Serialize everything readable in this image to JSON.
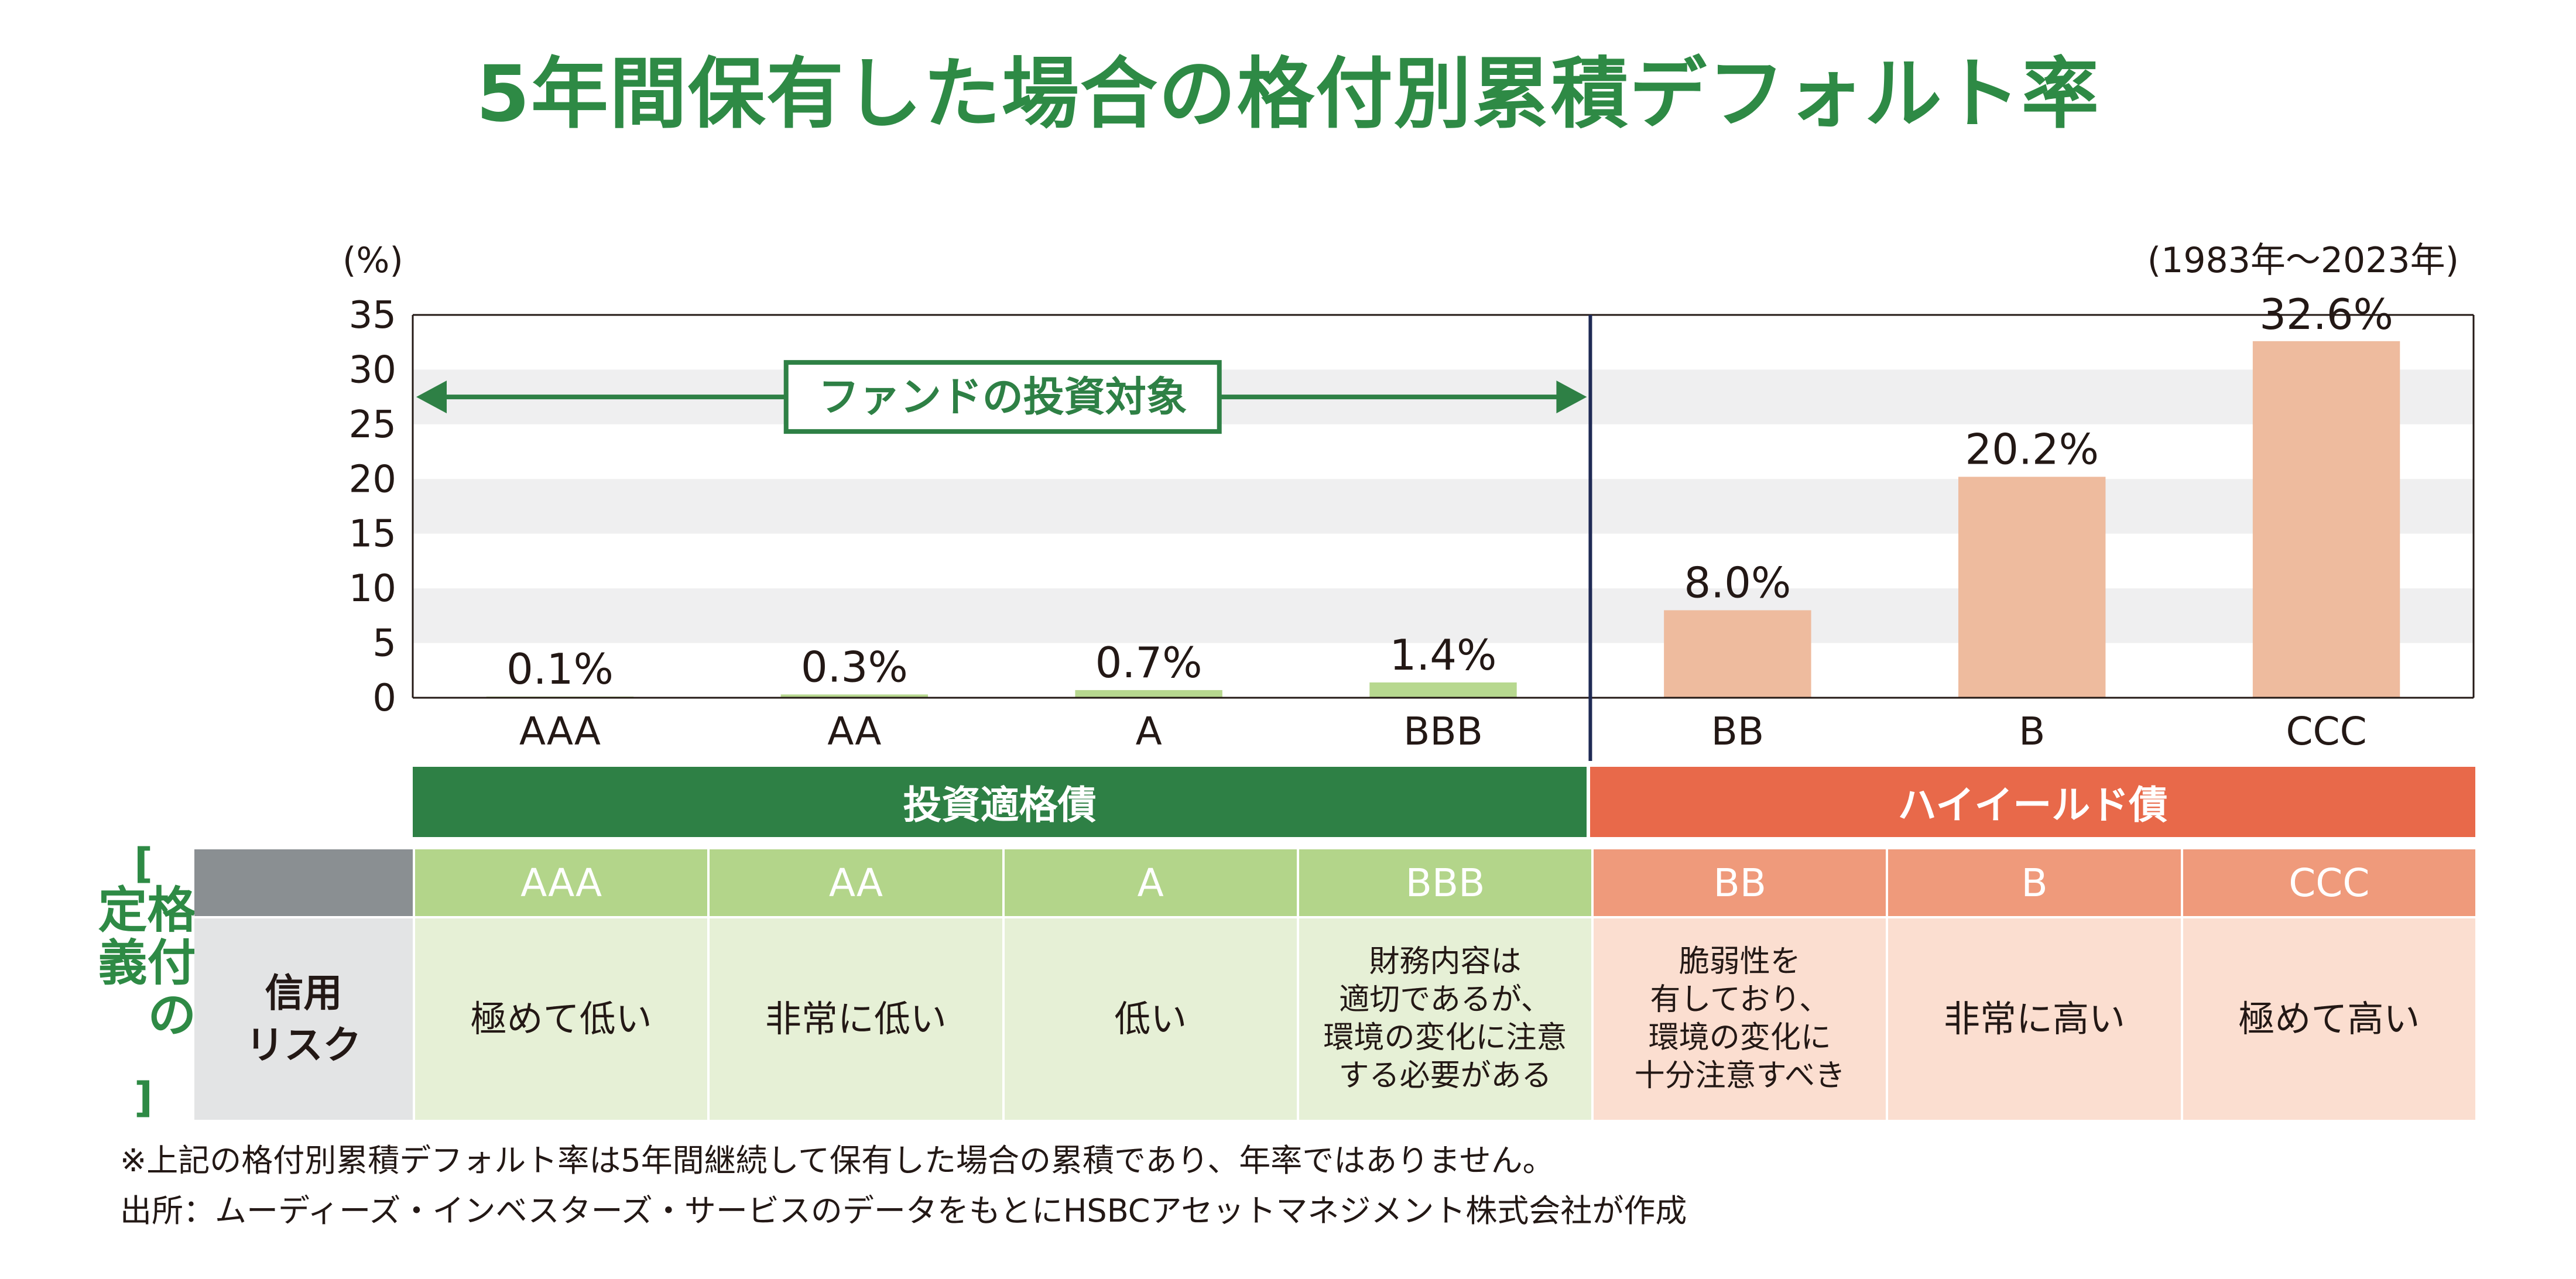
{
  "title": "5年間保有した場合の格付別累積デフォルト率",
  "chart_data": {
    "type": "bar",
    "title": "5年間保有した場合の格付別累積デフォルト率",
    "unit_label": "(%)",
    "period_label": "(1983年～2023年)",
    "categories": [
      "AAA",
      "AA",
      "A",
      "BBB",
      "BB",
      "B",
      "CCC"
    ],
    "values": [
      0.1,
      0.3,
      0.7,
      1.4,
      8.0,
      20.2,
      32.6
    ],
    "value_labels": [
      "0.1%",
      "0.3%",
      "0.7%",
      "1.4%",
      "8.0%",
      "20.2%",
      "32.6%"
    ],
    "colors": [
      "#b7d88f",
      "#b7d88f",
      "#b7d88f",
      "#b7d88f",
      "#eebb9e",
      "#eebb9e",
      "#eebb9e"
    ],
    "ylim": [
      0,
      35
    ],
    "yticks": [
      0,
      5,
      10,
      15,
      20,
      25,
      30,
      35
    ],
    "ytick_labels": [
      "0",
      "5",
      "10",
      "15",
      "20",
      "25",
      "30",
      "35"
    ],
    "xlabel": "",
    "ylabel": "",
    "divider_after_category": "BBB",
    "annotation": "ファンドの投資対象",
    "annotation_range": [
      "AAA",
      "BBB"
    ]
  },
  "bands": {
    "investment_grade": "投資適格債",
    "high_yield": "ハイイールド債"
  },
  "definitions": {
    "side_label_open": "[",
    "side_label": "格付の定義",
    "side_label_close": "]",
    "row_header": "信用\nリスク",
    "columns": [
      {
        "rating": "AAA",
        "risk": "極めて低い"
      },
      {
        "rating": "AA",
        "risk": "非常に低い"
      },
      {
        "rating": "A",
        "risk": "低い"
      },
      {
        "rating": "BBB",
        "risk": "財務内容は\n適切であるが、\n環境の変化に注意\nする必要がある"
      },
      {
        "rating": "BB",
        "risk": "脆弱性を\n有しており、\n環境の変化に\n十分注意すべき"
      },
      {
        "rating": "B",
        "risk": "非常に高い"
      },
      {
        "rating": "CCC",
        "risk": "極めて高い"
      }
    ]
  },
  "notes": [
    "※上記の格付別累積デフォルト率は5年間継続して保有した場合の累積であり、年率ではありません。",
    "出所：ムーディーズ・インベスターズ・サービスのデータをもとにHSBCアセットマネジメント株式会社が作成"
  ],
  "colors": {
    "title": "#2e8a45",
    "green_dark": "#2e8045",
    "orange_dark": "#e8694a",
    "green_light": "#b3d58a",
    "orange_light": "#ef9a7b"
  }
}
